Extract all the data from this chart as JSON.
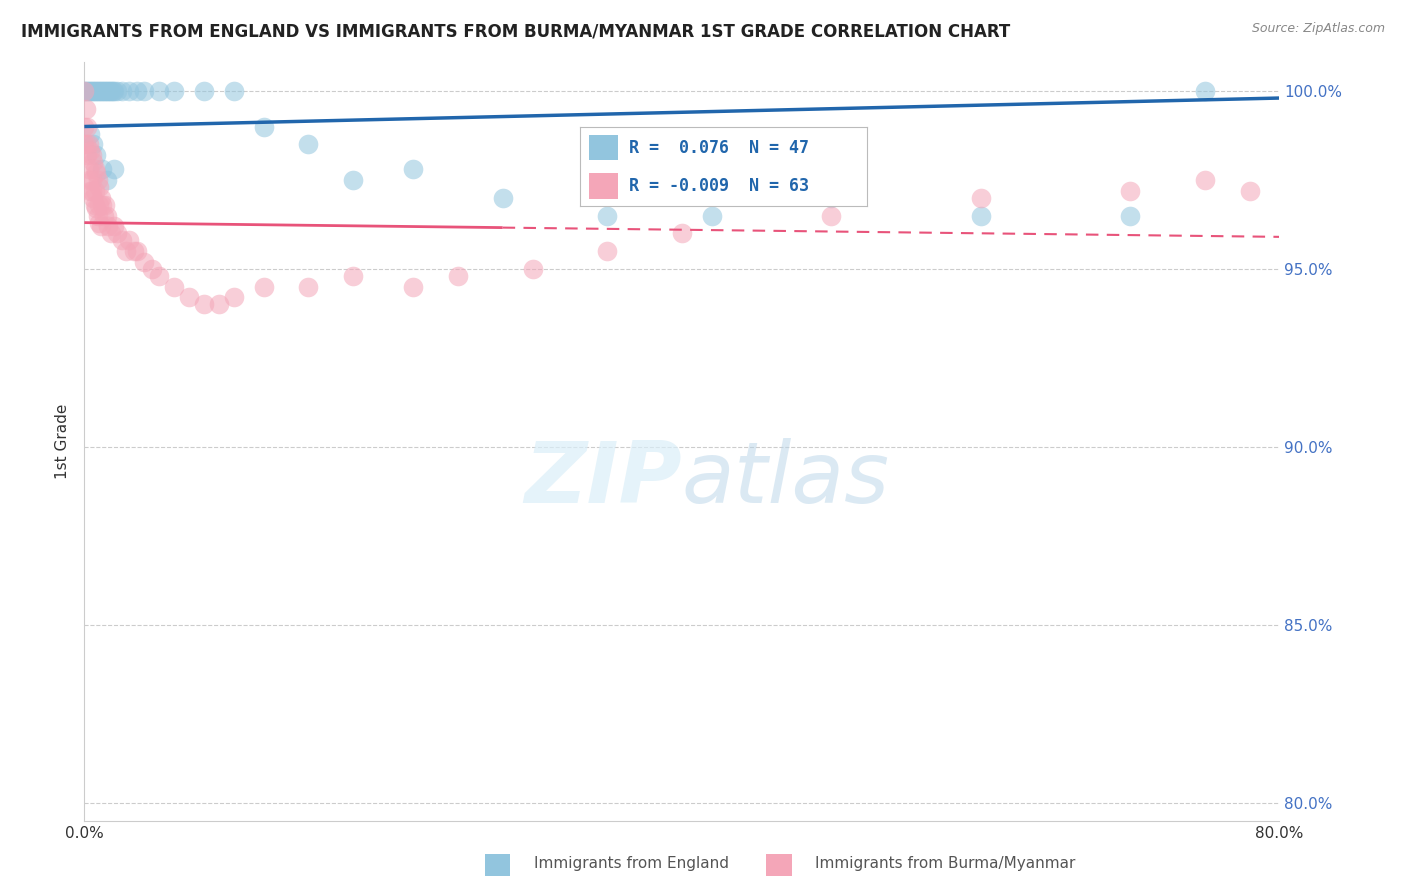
{
  "title": "IMMIGRANTS FROM ENGLAND VS IMMIGRANTS FROM BURMA/MYANMAR 1ST GRADE CORRELATION CHART",
  "source": "Source: ZipAtlas.com",
  "ylabel": "1st Grade",
  "R_blue": 0.076,
  "N_blue": 47,
  "R_pink": -0.009,
  "N_pink": 63,
  "xlim": [
    0.0,
    0.8
  ],
  "ylim": [
    0.795,
    1.008
  ],
  "xticks": [
    0.0,
    0.1,
    0.2,
    0.3,
    0.4,
    0.5,
    0.6,
    0.7,
    0.8
  ],
  "xticklabels": [
    "0.0%",
    "",
    "",
    "",
    "",
    "",
    "",
    "",
    "80.0%"
  ],
  "yticks": [
    0.8,
    0.85,
    0.9,
    0.95,
    1.0
  ],
  "yticklabels": [
    "80.0%",
    "85.0%",
    "90.0%",
    "95.0%",
    "100.0%"
  ],
  "blue_color": "#92c5de",
  "pink_color": "#f4a6b8",
  "trendline_blue": "#2166ac",
  "trendline_pink": "#e8537a",
  "legend_label_blue": "Immigrants from England",
  "legend_label_pink": "Immigrants from Burma/Myanmar",
  "blue_scatter_x": [
    0.0,
    0.001,
    0.002,
    0.003,
    0.004,
    0.005,
    0.006,
    0.007,
    0.008,
    0.009,
    0.01,
    0.011,
    0.012,
    0.013,
    0.014,
    0.015,
    0.016,
    0.017,
    0.018,
    0.019,
    0.02,
    0.022,
    0.025,
    0.03,
    0.035,
    0.04,
    0.05,
    0.06,
    0.08,
    0.1,
    0.12,
    0.15,
    0.18,
    0.22,
    0.28,
    0.35,
    0.42,
    0.5,
    0.6,
    0.7,
    0.75,
    0.004,
    0.006,
    0.008,
    0.012,
    0.015,
    0.02
  ],
  "blue_scatter_y": [
    1.0,
    1.0,
    1.0,
    1.0,
    1.0,
    1.0,
    1.0,
    1.0,
    1.0,
    1.0,
    1.0,
    1.0,
    1.0,
    1.0,
    1.0,
    1.0,
    1.0,
    1.0,
    1.0,
    1.0,
    1.0,
    1.0,
    1.0,
    1.0,
    1.0,
    1.0,
    1.0,
    1.0,
    1.0,
    1.0,
    0.99,
    0.985,
    0.975,
    0.978,
    0.97,
    0.965,
    0.965,
    0.97,
    0.965,
    0.965,
    1.0,
    0.988,
    0.985,
    0.982,
    0.978,
    0.975,
    0.978
  ],
  "pink_scatter_x": [
    0.0,
    0.0,
    0.0,
    0.001,
    0.001,
    0.002,
    0.002,
    0.003,
    0.003,
    0.004,
    0.004,
    0.005,
    0.005,
    0.006,
    0.006,
    0.007,
    0.007,
    0.008,
    0.008,
    0.009,
    0.009,
    0.01,
    0.01,
    0.011,
    0.011,
    0.012,
    0.013,
    0.014,
    0.015,
    0.016,
    0.018,
    0.02,
    0.022,
    0.025,
    0.028,
    0.03,
    0.033,
    0.035,
    0.04,
    0.045,
    0.05,
    0.06,
    0.07,
    0.08,
    0.09,
    0.1,
    0.12,
    0.15,
    0.18,
    0.22,
    0.25,
    0.3,
    0.35,
    0.4,
    0.5,
    0.6,
    0.7,
    0.75,
    0.78,
    0.003,
    0.005,
    0.007,
    0.01
  ],
  "pink_scatter_y": [
    1.0,
    0.99,
    0.985,
    0.995,
    0.985,
    0.99,
    0.982,
    0.985,
    0.975,
    0.983,
    0.972,
    0.982,
    0.972,
    0.98,
    0.97,
    0.978,
    0.968,
    0.977,
    0.967,
    0.975,
    0.965,
    0.973,
    0.963,
    0.97,
    0.962,
    0.968,
    0.965,
    0.968,
    0.965,
    0.962,
    0.96,
    0.962,
    0.96,
    0.958,
    0.955,
    0.958,
    0.955,
    0.955,
    0.952,
    0.95,
    0.948,
    0.945,
    0.942,
    0.94,
    0.94,
    0.942,
    0.945,
    0.945,
    0.948,
    0.945,
    0.948,
    0.95,
    0.955,
    0.96,
    0.965,
    0.97,
    0.972,
    0.975,
    0.972,
    0.978,
    0.975,
    0.972,
    0.968
  ]
}
